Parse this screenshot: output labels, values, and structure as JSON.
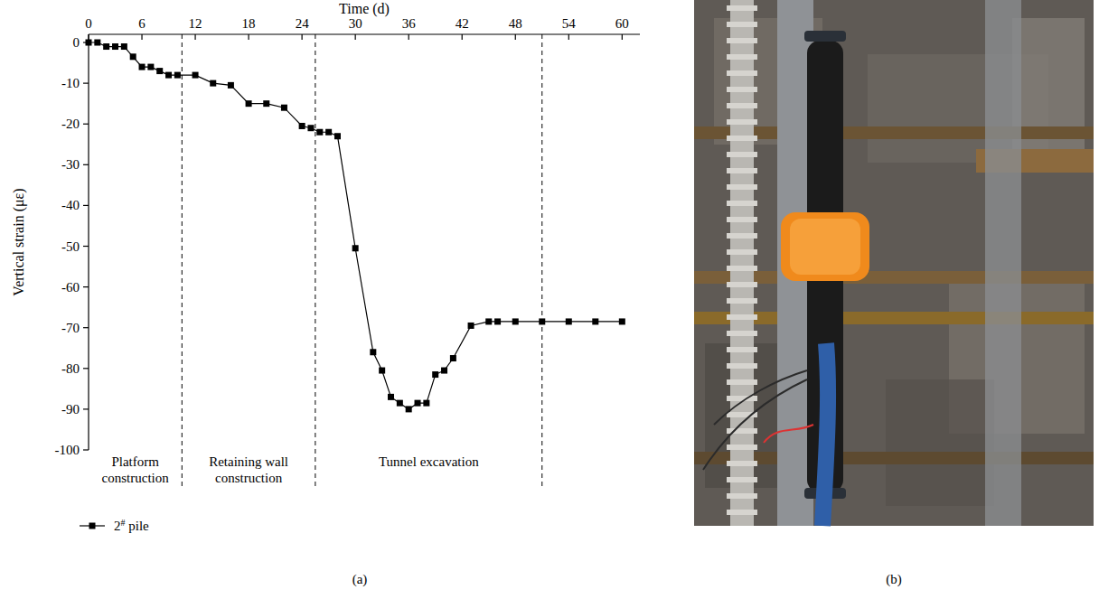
{
  "chart_data": {
    "type": "line",
    "panel_label": "(a)",
    "x_label": "Time (d)",
    "y_label": "Vertical strain (με)",
    "x": [
      0,
      1,
      2,
      3,
      4,
      5,
      6,
      7,
      8,
      9,
      10,
      12,
      14,
      16,
      18,
      20,
      22,
      24,
      25,
      26,
      27,
      28,
      30,
      32,
      33,
      34,
      35,
      36,
      37,
      38,
      39,
      40,
      41,
      43,
      45,
      46,
      48,
      51,
      54,
      57,
      60
    ],
    "series": [
      {
        "name": "2# pile",
        "color": "#000000",
        "marker": "square",
        "line_style": "solid",
        "values": [
          0,
          0,
          -1,
          -1,
          -1,
          -3.5,
          -6,
          -6,
          -7,
          -8,
          -8,
          -8,
          -10,
          -10.5,
          -15,
          -15,
          -16,
          -20.5,
          -21,
          -22,
          -22,
          -23,
          -50.5,
          -76,
          -80.5,
          -87,
          -88.5,
          -90,
          -88.5,
          -88.5,
          -81.5,
          -80.5,
          -77.5,
          -69.5,
          -68.5,
          -68.5,
          -68.5,
          -68.5,
          -68.5,
          -68.5,
          -68.5
        ]
      }
    ],
    "xlim": [
      0,
      62
    ],
    "xticks": [
      0,
      6,
      12,
      18,
      24,
      30,
      36,
      42,
      48,
      54,
      60
    ],
    "ylim": [
      -100,
      2
    ],
    "yticks": [
      0,
      -10,
      -20,
      -30,
      -40,
      -50,
      -60,
      -70,
      -80,
      -90,
      -100
    ],
    "grid": false,
    "legend": "bottom-left",
    "phases": [
      {
        "label": [
          "Platform",
          "construction"
        ],
        "start": 0,
        "end": 10.5
      },
      {
        "label": [
          "Retaining wall",
          "construction"
        ],
        "start": 10.5,
        "end": 25.5
      },
      {
        "label": [
          "Tunnel excavation"
        ],
        "start": 25.5,
        "end": 51
      }
    ]
  },
  "photo": {
    "panel_label": "(b)"
  }
}
